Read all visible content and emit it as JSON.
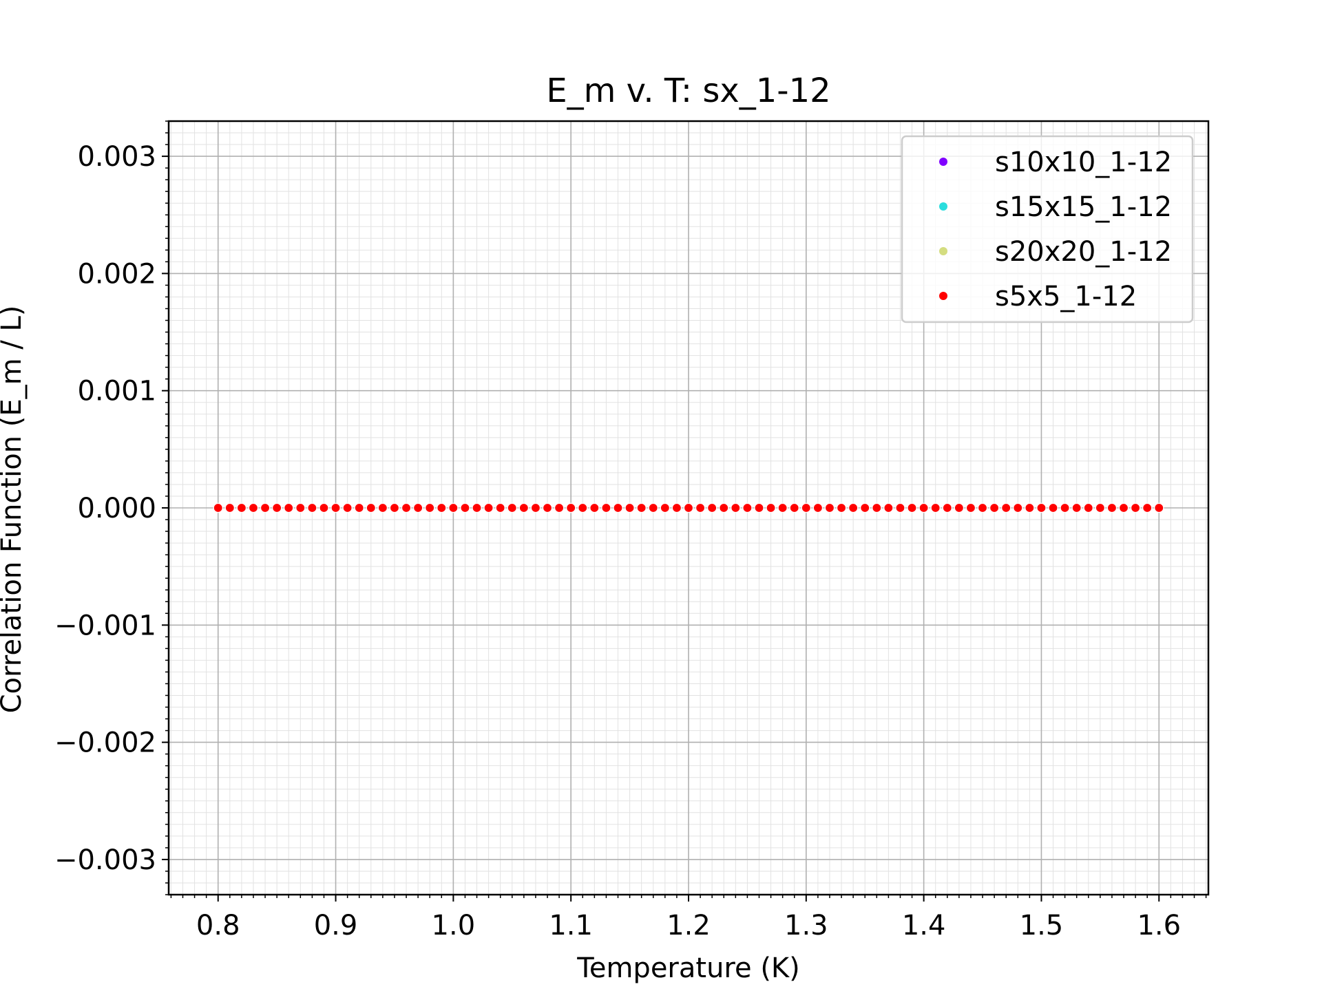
{
  "chart_data": {
    "type": "scatter",
    "title": "E_m v. T: sx_1-12",
    "xlabel": "Temperature (K)",
    "ylabel": "Correlation Function (E_m / L)",
    "xlim": [
      0.758,
      1.642
    ],
    "ylim": [
      -0.0033,
      0.0033
    ],
    "x_ticks": [
      0.8,
      0.9,
      1.0,
      1.1,
      1.2,
      1.3,
      1.4,
      1.5,
      1.6
    ],
    "x_tick_labels": [
      "0.8",
      "0.9",
      "1.0",
      "1.1",
      "1.2",
      "1.3",
      "1.4",
      "1.5",
      "1.6"
    ],
    "y_ticks": [
      0.003,
      0.002,
      0.001,
      0.0,
      -0.001,
      -0.002,
      -0.003
    ],
    "y_tick_labels": [
      "0.003",
      "0.002",
      "0.001",
      "0.000",
      "−0.001",
      "−0.002",
      "−0.003"
    ],
    "grid": true,
    "minor_grid": true,
    "legend_position": "top-right",
    "x_start": 0.8,
    "x_end": 1.6,
    "n_points": 81,
    "series": [
      {
        "name": "s10x10_1-12",
        "color": "#8000ff",
        "y_constant": 0.0
      },
      {
        "name": "s15x15_1-12",
        "color": "#2adddd",
        "y_constant": 0.0
      },
      {
        "name": "s20x20_1-12",
        "color": "#d4dd80",
        "y_constant": 0.0
      },
      {
        "name": "s5x5_1-12",
        "color": "#ff0000",
        "y_constant": 0.0
      }
    ]
  }
}
